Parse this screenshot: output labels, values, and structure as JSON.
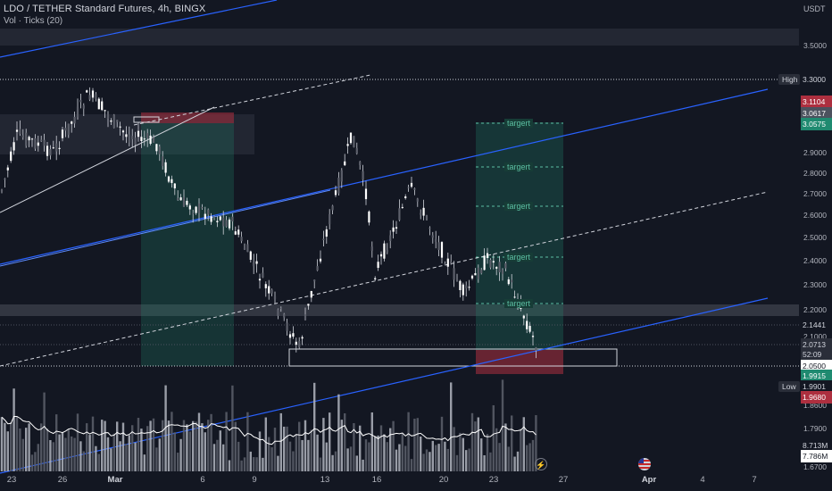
{
  "header": {
    "title": "LDO / TETHER Standard Futures, 4h, BINGX",
    "indicator": "Vol · Ticks (20)",
    "currency": "USDT"
  },
  "price_axis": {
    "labels": [
      "3.5000",
      "2.9000",
      "2.8000",
      "2.7000",
      "2.6000",
      "2.5000",
      "2.4000",
      "2.3000",
      "2.2000",
      "2.1000",
      "1.8600",
      "1.7900",
      "1.6700"
    ],
    "high_tag": "High",
    "high_value": "3.3000",
    "low_tag": "Low",
    "low_value": "1.9901",
    "boxes": {
      "red_top": "3.1104",
      "grey_top": "3.0617",
      "green_top": "3.0575",
      "p_2144": "2.1441",
      "p_2071": "2.0713",
      "countdown": "52:09",
      "p_2050": "2.0500",
      "green_low": "1.9915",
      "red_low": "1.9680",
      "vol_1": "8.713M",
      "vol_2": "7.786M"
    },
    "colors": {
      "red": "#ad2f3f",
      "green": "#1f8a70",
      "grey": "#3a3e4a",
      "blue_line": "#2962ff"
    }
  },
  "time_axis": [
    "23",
    "26",
    "Mar",
    "6",
    "9",
    "13",
    "16",
    "20",
    "23",
    "27",
    "Apr",
    "4",
    "7"
  ],
  "targets": [
    "targert",
    "targert",
    "targert",
    "targert",
    "targert"
  ],
  "icons": {
    "bolt": "lightning-icon",
    "flag": "us-flag-icon"
  }
}
